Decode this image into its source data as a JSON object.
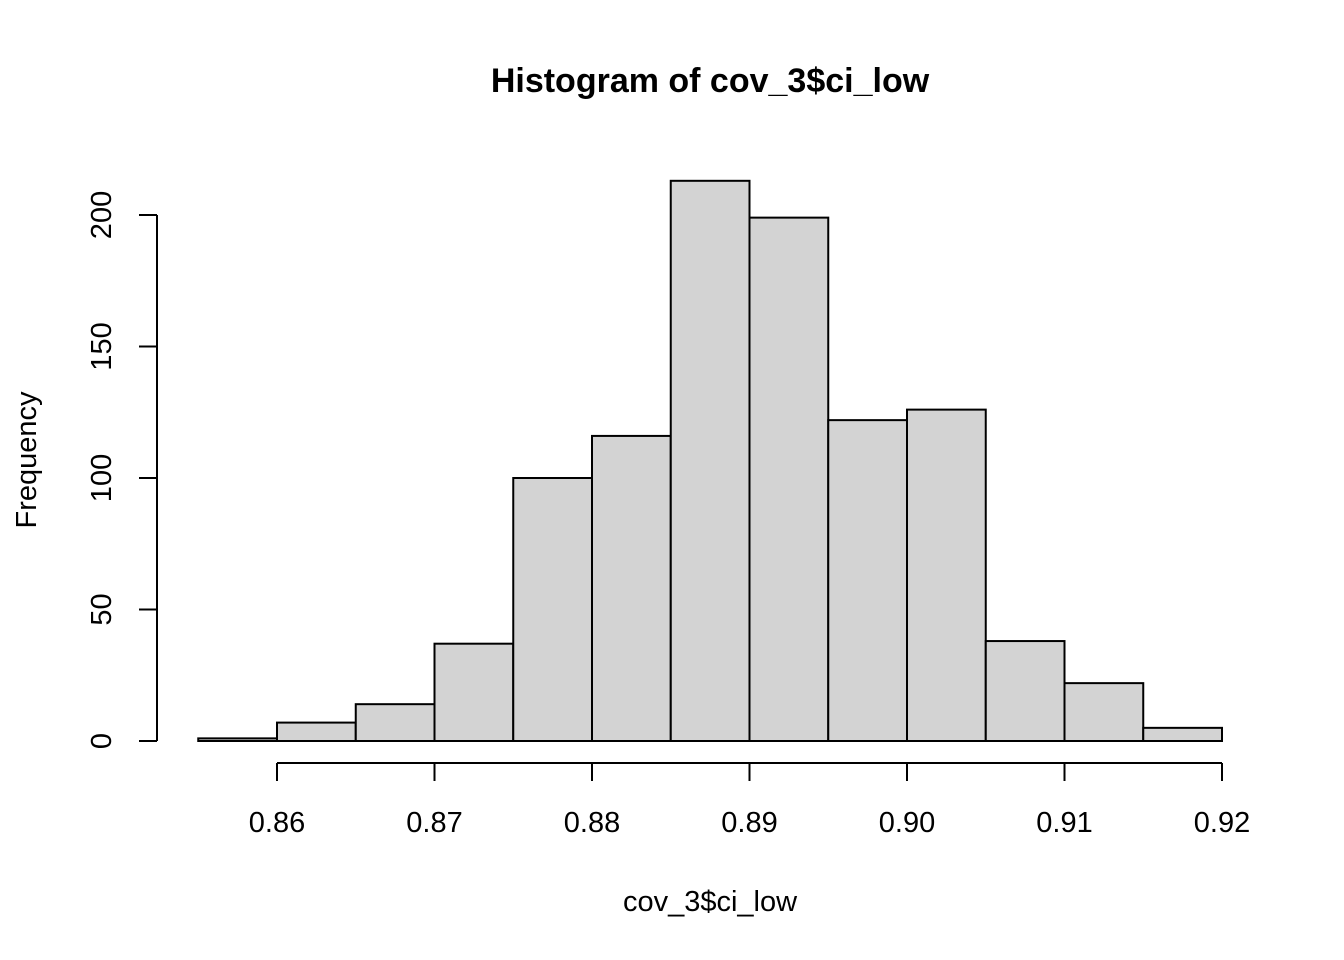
{
  "chart_data": {
    "type": "bar",
    "title": "Histogram of cov_3$ci_low",
    "xlabel": "cov_3$ci_low",
    "ylabel": "Frequency",
    "bin_edges": [
      0.855,
      0.86,
      0.865,
      0.87,
      0.875,
      0.88,
      0.885,
      0.89,
      0.895,
      0.9,
      0.905,
      0.91,
      0.915,
      0.92
    ],
    "values": [
      1,
      7,
      14,
      37,
      100,
      116,
      213,
      199,
      122,
      126,
      38,
      22,
      5
    ],
    "xlim": [
      0.855,
      0.92
    ],
    "ylim": [
      0,
      213
    ],
    "x_ticks": [
      0.86,
      0.87,
      0.88,
      0.89,
      0.9,
      0.91,
      0.92
    ],
    "x_tick_labels": [
      "0.86",
      "0.87",
      "0.88",
      "0.89",
      "0.90",
      "0.91",
      "0.92"
    ],
    "y_ticks": [
      0,
      50,
      100,
      150,
      200
    ],
    "y_tick_labels": [
      "0",
      "50",
      "100",
      "150",
      "200"
    ],
    "grid": false,
    "legend": "none",
    "bar_fill": "#d3d3d3",
    "bar_stroke": "#000000"
  }
}
